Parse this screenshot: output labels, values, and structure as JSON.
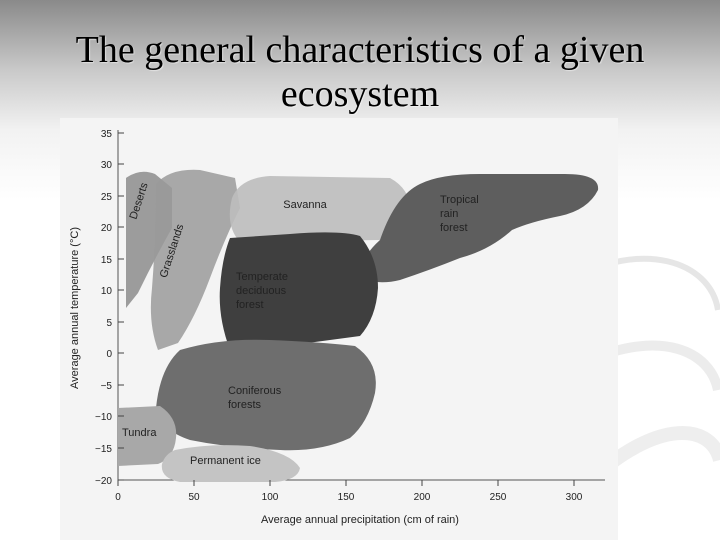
{
  "slide": {
    "title": "The general characteristics of a given ecosystem"
  },
  "diagram": {
    "y_axis_label": "Average annual temperature (°C)",
    "x_axis_label": "Average annual precipitation (cm of rain)",
    "y_ticks": [
      "35",
      "30",
      "25",
      "20",
      "15",
      "10",
      "5",
      "0",
      "−5",
      "−10",
      "−15",
      "−20"
    ],
    "x_ticks": [
      "0",
      "50",
      "100",
      "150",
      "200",
      "250",
      "300"
    ],
    "biomes": {
      "deserts": "Deserts",
      "grasslands": "Grasslands",
      "savanna": "Savanna",
      "tropical_line1": "Tropical",
      "tropical_line2": "rain",
      "tropical_line3": "forest",
      "temperate_line1": "Temperate",
      "temperate_line2": "deciduous",
      "temperate_line3": "forest",
      "coniferous_line1": "Coniferous",
      "coniferous_line2": "forests",
      "tundra": "Tundra",
      "permanent_ice": "Permanent ice"
    },
    "colors": {
      "deserts": "#8c8c8c",
      "grasslands": "#9a9a9a",
      "savanna": "#b8b8b8",
      "tropical": "#5e5e5e",
      "temperate": "#3f3f3f",
      "coniferous": "#6e6e6e",
      "tundra": "#a8a8a8",
      "permanent_ice": "#c4c4c4"
    }
  }
}
